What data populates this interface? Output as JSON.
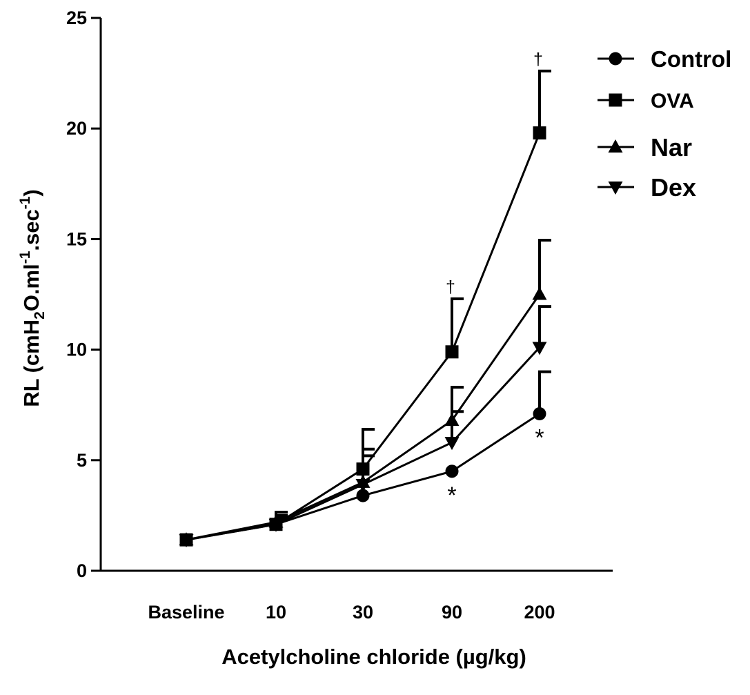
{
  "chart_data": {
    "type": "line",
    "categories": [
      "Baseline",
      "10",
      "30",
      "90",
      "200"
    ],
    "xlabel": "Acetylcholine chloride (µg/kg)",
    "ylabel": {
      "prefix": "RL (cmH",
      "sub": "2",
      "mid1": "O.ml",
      "sup1": "-1",
      "mid2": ".sec",
      "sup2": "-1",
      "suffix": ")"
    },
    "ylim": [
      0,
      25
    ],
    "yticks": [
      "0",
      "5",
      "10",
      "15",
      "20",
      "25"
    ],
    "grid": false,
    "legend_position": "top-right",
    "series": [
      {
        "name": "Control",
        "marker": "circle",
        "values": [
          1.4,
          2.1,
          3.4,
          4.5,
          7.1
        ],
        "error": [
          0,
          0.3,
          0,
          0,
          1.9
        ],
        "annotations": [
          null,
          null,
          null,
          "*",
          "*"
        ]
      },
      {
        "name": "OVA",
        "marker": "square",
        "values": [
          1.4,
          2.1,
          4.6,
          9.9,
          19.8
        ],
        "error": [
          0,
          0.55,
          1.8,
          2.4,
          2.8
        ],
        "annotations": [
          null,
          null,
          null,
          "†",
          "†"
        ]
      },
      {
        "name": "Nar",
        "marker": "triangle-up",
        "values": [
          1.4,
          2.2,
          4.0,
          6.8,
          12.5
        ],
        "error": [
          0,
          0.3,
          1.5,
          1.5,
          2.45
        ],
        "annotations": [
          null,
          null,
          null,
          null,
          null
        ]
      },
      {
        "name": "Dex",
        "marker": "triangle-down",
        "values": [
          1.4,
          2.1,
          3.9,
          5.8,
          10.1
        ],
        "error": [
          0,
          0.25,
          1.3,
          1.4,
          1.85
        ],
        "annotations": [
          null,
          null,
          null,
          null,
          null
        ]
      }
    ]
  }
}
